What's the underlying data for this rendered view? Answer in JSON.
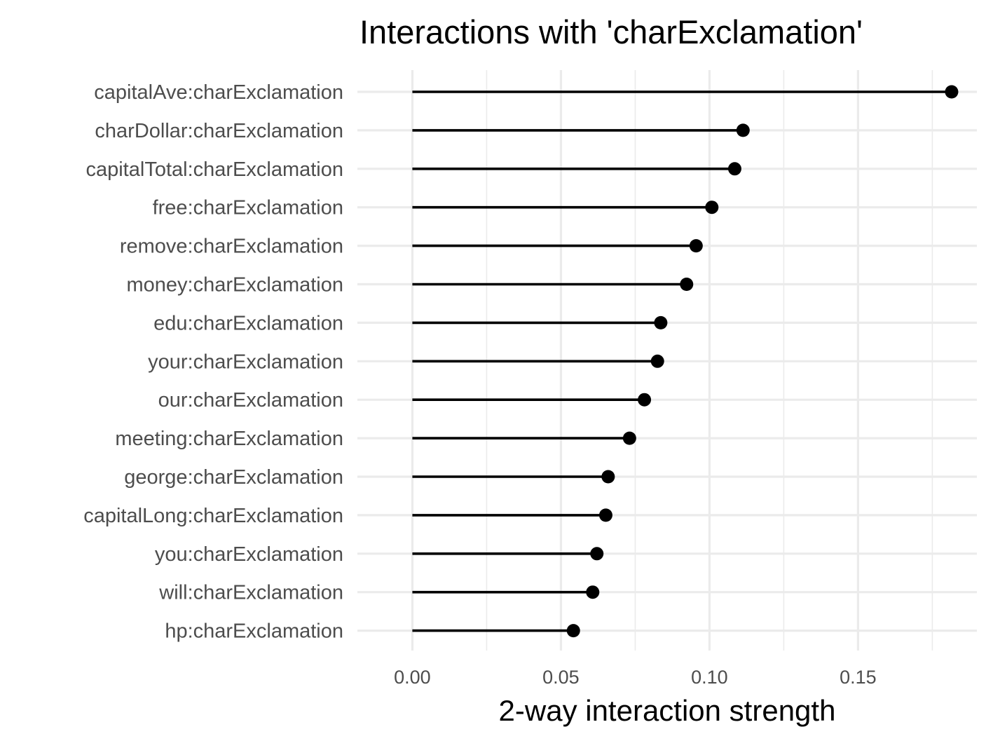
{
  "chart_data": {
    "type": "lollipop",
    "title": "Interactions with 'charExclamation'",
    "xlabel": "2-way interaction strength",
    "ylabel": "",
    "xlim": [
      -0.0185,
      0.19
    ],
    "x_ticks": [
      0.0,
      0.05,
      0.1,
      0.15
    ],
    "x_tick_labels": [
      "0.00",
      "0.05",
      "0.10",
      "0.15"
    ],
    "x_minor_ticks": [
      0.025,
      0.075,
      0.125,
      0.175
    ],
    "grid": true,
    "legend": "none",
    "categories": [
      "capitalAve:charExclamation",
      "charDollar:charExclamation",
      "capitalTotal:charExclamation",
      "free:charExclamation",
      "remove:charExclamation",
      "money:charExclamation",
      "edu:charExclamation",
      "your:charExclamation",
      "our:charExclamation",
      "meeting:charExclamation",
      "george:charExclamation",
      "capitalLong:charExclamation",
      "you:charExclamation",
      "will:charExclamation",
      "hp:charExclamation"
    ],
    "values": [
      0.1815,
      0.1113,
      0.1085,
      0.1008,
      0.0955,
      0.0923,
      0.0836,
      0.0825,
      0.0781,
      0.0731,
      0.0659,
      0.0651,
      0.0621,
      0.0607,
      0.0542
    ],
    "colors": {
      "mark": "#000000",
      "grid": "#ebebeb",
      "tick_text": "#4d4d4d",
      "title_text": "#000000"
    }
  }
}
